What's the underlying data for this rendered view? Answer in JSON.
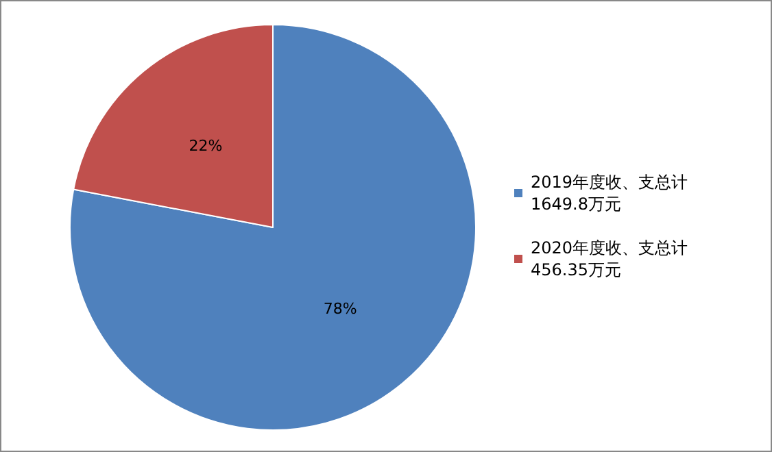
{
  "chart_data": {
    "type": "pie",
    "categories": [
      "2019年度收、支总计1649.8万元",
      "2020年度收、支总计456.35万元"
    ],
    "values": [
      78,
      22
    ],
    "colors": [
      "#4f81bd",
      "#c0504d"
    ],
    "value_labels": [
      "78%",
      "22%"
    ],
    "legend": "right"
  }
}
